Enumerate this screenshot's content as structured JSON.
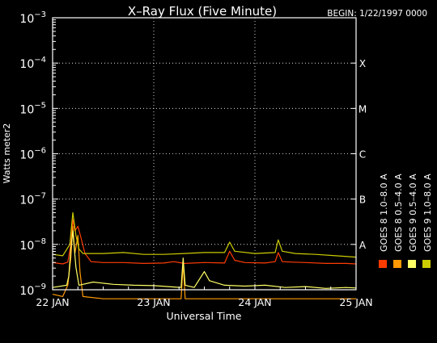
{
  "chart_data": {
    "type": "line",
    "title": "X–Ray Flux (Five Minute)",
    "begin_label": "BEGIN: 1/22/1997 0000",
    "xlabel": "Universal Time",
    "ylabel": "Watts meter",
    "ylabel_exp": "2",
    "x_ticks": [
      {
        "day": 0,
        "label": "22 JAN"
      },
      {
        "day": 1,
        "label": "23 JAN"
      },
      {
        "day": 2,
        "label": "24 JAN"
      },
      {
        "day": 3,
        "label": "25 JAN"
      }
    ],
    "xlim_days": [
      0,
      3
    ],
    "ylim_exp": [
      -9,
      -3
    ],
    "y_ticks": [
      {
        "exp": -9,
        "base": "10",
        "power": "−9"
      },
      {
        "exp": -8,
        "base": "10",
        "power": "−8"
      },
      {
        "exp": -7,
        "base": "10",
        "power": "−7"
      },
      {
        "exp": -6,
        "base": "10",
        "power": "−6"
      },
      {
        "exp": -5,
        "base": "10",
        "power": "−5"
      },
      {
        "exp": -4,
        "base": "10",
        "power": "−4"
      },
      {
        "exp": -3,
        "base": "10",
        "power": "−3"
      }
    ],
    "flare_classes": [
      {
        "label": "A",
        "exp": -8
      },
      {
        "label": "B",
        "exp": -7
      },
      {
        "label": "C",
        "exp": -6
      },
      {
        "label": "M",
        "exp": -5
      },
      {
        "label": "X",
        "exp": -4
      }
    ],
    "grid": true,
    "series": [
      {
        "name": "GOES 8  1.0–8.0 A",
        "color": "#ff3c00",
        "points": [
          [
            0,
            -8.4
          ],
          [
            0.1,
            -8.43
          ],
          [
            0.15,
            -8.39
          ],
          [
            0.18,
            -8.0
          ],
          [
            0.2,
            -7.45
          ],
          [
            0.22,
            -7.7
          ],
          [
            0.25,
            -7.6
          ],
          [
            0.28,
            -7.85
          ],
          [
            0.32,
            -8.2
          ],
          [
            0.38,
            -8.38
          ],
          [
            0.5,
            -8.4
          ],
          [
            0.7,
            -8.4
          ],
          [
            0.9,
            -8.42
          ],
          [
            1.1,
            -8.41
          ],
          [
            1.2,
            -8.38
          ],
          [
            1.3,
            -8.42
          ],
          [
            1.5,
            -8.4
          ],
          [
            1.7,
            -8.41
          ],
          [
            1.75,
            -8.15
          ],
          [
            1.8,
            -8.35
          ],
          [
            1.9,
            -8.4
          ],
          [
            2.1,
            -8.41
          ],
          [
            2.2,
            -8.38
          ],
          [
            2.23,
            -8.18
          ],
          [
            2.27,
            -8.38
          ],
          [
            2.35,
            -8.39
          ],
          [
            2.5,
            -8.4
          ],
          [
            2.7,
            -8.42
          ],
          [
            2.9,
            -8.42
          ],
          [
            3.0,
            -8.43
          ]
        ]
      },
      {
        "name": "GOES 8  0.5–4.0 A",
        "color": "#ff9a00",
        "points": [
          [
            0,
            -9.1
          ],
          [
            0.1,
            -9.15
          ],
          [
            0.15,
            -8.9
          ],
          [
            0.18,
            -8.3
          ],
          [
            0.2,
            -7.6
          ],
          [
            0.22,
            -8.2
          ],
          [
            0.25,
            -7.8
          ],
          [
            0.27,
            -8.6
          ],
          [
            0.3,
            -9.15
          ],
          [
            0.5,
            -9.2
          ],
          [
            1.2,
            -9.2
          ],
          [
            1.27,
            -9.2
          ],
          [
            1.29,
            -8.4
          ],
          [
            1.31,
            -9.2
          ],
          [
            1.5,
            -9.2
          ],
          [
            2.0,
            -9.2
          ],
          [
            2.5,
            -9.2
          ],
          [
            3.0,
            -9.2
          ]
        ]
      },
      {
        "name": "GOES 9  0.5–4.0 A",
        "color": "#ffff66",
        "points": [
          [
            0,
            -8.95
          ],
          [
            0.14,
            -8.9
          ],
          [
            0.16,
            -8.7
          ],
          [
            0.18,
            -8.1
          ],
          [
            0.2,
            -7.7
          ],
          [
            0.23,
            -8.5
          ],
          [
            0.26,
            -8.9
          ],
          [
            0.4,
            -8.83
          ],
          [
            0.6,
            -8.88
          ],
          [
            0.8,
            -8.9
          ],
          [
            1.0,
            -8.91
          ],
          [
            1.2,
            -8.94
          ],
          [
            1.27,
            -8.95
          ],
          [
            1.29,
            -8.3
          ],
          [
            1.31,
            -8.9
          ],
          [
            1.4,
            -8.95
          ],
          [
            1.5,
            -8.6
          ],
          [
            1.55,
            -8.8
          ],
          [
            1.7,
            -8.9
          ],
          [
            1.9,
            -8.92
          ],
          [
            2.1,
            -8.9
          ],
          [
            2.3,
            -8.95
          ],
          [
            2.5,
            -8.93
          ],
          [
            2.7,
            -8.97
          ],
          [
            2.9,
            -8.95
          ],
          [
            3.0,
            -8.96
          ]
        ]
      },
      {
        "name": "GOES 9  1.0–8.0 A",
        "color": "#cccc00",
        "points": [
          [
            0,
            -8.22
          ],
          [
            0.1,
            -8.25
          ],
          [
            0.17,
            -8.0
          ],
          [
            0.2,
            -7.3
          ],
          [
            0.23,
            -7.8
          ],
          [
            0.26,
            -8.1
          ],
          [
            0.3,
            -8.2
          ],
          [
            0.5,
            -8.2
          ],
          [
            0.7,
            -8.18
          ],
          [
            0.9,
            -8.22
          ],
          [
            1.1,
            -8.22
          ],
          [
            1.3,
            -8.2
          ],
          [
            1.5,
            -8.18
          ],
          [
            1.7,
            -8.18
          ],
          [
            1.75,
            -7.95
          ],
          [
            1.8,
            -8.15
          ],
          [
            2.0,
            -8.2
          ],
          [
            2.2,
            -8.18
          ],
          [
            2.23,
            -7.9
          ],
          [
            2.27,
            -8.15
          ],
          [
            2.4,
            -8.2
          ],
          [
            2.6,
            -8.22
          ],
          [
            2.8,
            -8.25
          ],
          [
            3.0,
            -8.28
          ]
        ]
      }
    ]
  }
}
